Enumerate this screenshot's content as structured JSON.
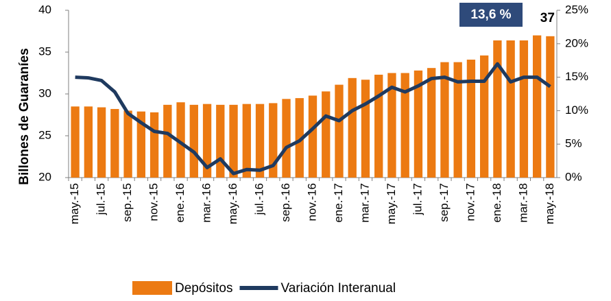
{
  "chart_data": {
    "type": "combo",
    "y_label": "Billones de Guaraníes",
    "categories": [
      "may.-15",
      null,
      "jul.-15",
      null,
      "sep.-15",
      null,
      "nov.-15",
      null,
      "ene.-16",
      null,
      "mar.-16",
      null,
      "may.-16",
      null,
      "jul.-16",
      null,
      "sep.-16",
      null,
      "nov.-16",
      null,
      "ene.-17",
      null,
      "mar.-17",
      null,
      "may.-17",
      null,
      "jul.-17",
      null,
      "sep.-17",
      null,
      "nov.-17",
      null,
      "ene.-18",
      null,
      "mar.-18",
      null,
      "may.-18"
    ],
    "series": [
      {
        "name": "Depósitos",
        "type": "bar",
        "color": "#ec7a12",
        "axis": "y",
        "values": [
          28.5,
          28.5,
          28.4,
          28.2,
          28.0,
          27.9,
          27.8,
          28.7,
          29.0,
          28.7,
          28.8,
          28.7,
          28.7,
          28.8,
          28.8,
          28.9,
          29.4,
          29.5,
          29.8,
          30.3,
          31.1,
          31.9,
          31.7,
          32.3,
          32.5,
          32.5,
          32.8,
          33.1,
          33.8,
          33.8,
          34.1,
          34.6,
          36.4,
          36.4,
          36.4,
          37.0,
          36.9
        ],
        "value_labels": [
          null,
          null,
          null,
          null,
          null,
          null,
          null,
          null,
          null,
          null,
          null,
          null,
          null,
          null,
          null,
          null,
          null,
          null,
          null,
          null,
          null,
          null,
          null,
          null,
          null,
          null,
          null,
          null,
          null,
          null,
          null,
          null,
          null,
          null,
          null,
          null,
          "37"
        ]
      },
      {
        "name": "Variación Interanual",
        "type": "line",
        "color": "#1f3a5f",
        "axis": "y2",
        "values": [
          15.0,
          14.9,
          14.5,
          12.8,
          9.6,
          8.2,
          6.9,
          6.6,
          5.2,
          3.8,
          1.5,
          2.8,
          0.6,
          1.2,
          1.1,
          1.8,
          4.5,
          5.5,
          7.3,
          9.2,
          8.5,
          10.0,
          11.0,
          12.2,
          13.5,
          12.8,
          13.7,
          14.8,
          15.0,
          14.3,
          14.4,
          14.4,
          17.0,
          14.3,
          15.0,
          15.0,
          13.6
        ],
        "value_labels": [
          null,
          null,
          null,
          null,
          null,
          null,
          null,
          null,
          null,
          null,
          null,
          null,
          null,
          null,
          null,
          null,
          null,
          null,
          null,
          null,
          null,
          null,
          null,
          null,
          null,
          null,
          null,
          null,
          null,
          null,
          null,
          null,
          null,
          null,
          null,
          null,
          "13,6 %"
        ]
      }
    ],
    "ylim": [
      20,
      40
    ],
    "yticks": [
      20,
      25,
      30,
      35,
      40
    ],
    "y2lim": [
      0,
      25
    ],
    "y2ticks": [
      {
        "value": 0,
        "label": "0%"
      },
      {
        "value": 5,
        "label": "5%"
      },
      {
        "value": 10,
        "label": "10%"
      },
      {
        "value": 15,
        "label": "15%"
      },
      {
        "value": 20,
        "label": "20%"
      },
      {
        "value": 25,
        "label": "25%"
      }
    ],
    "legend": "bottom"
  }
}
